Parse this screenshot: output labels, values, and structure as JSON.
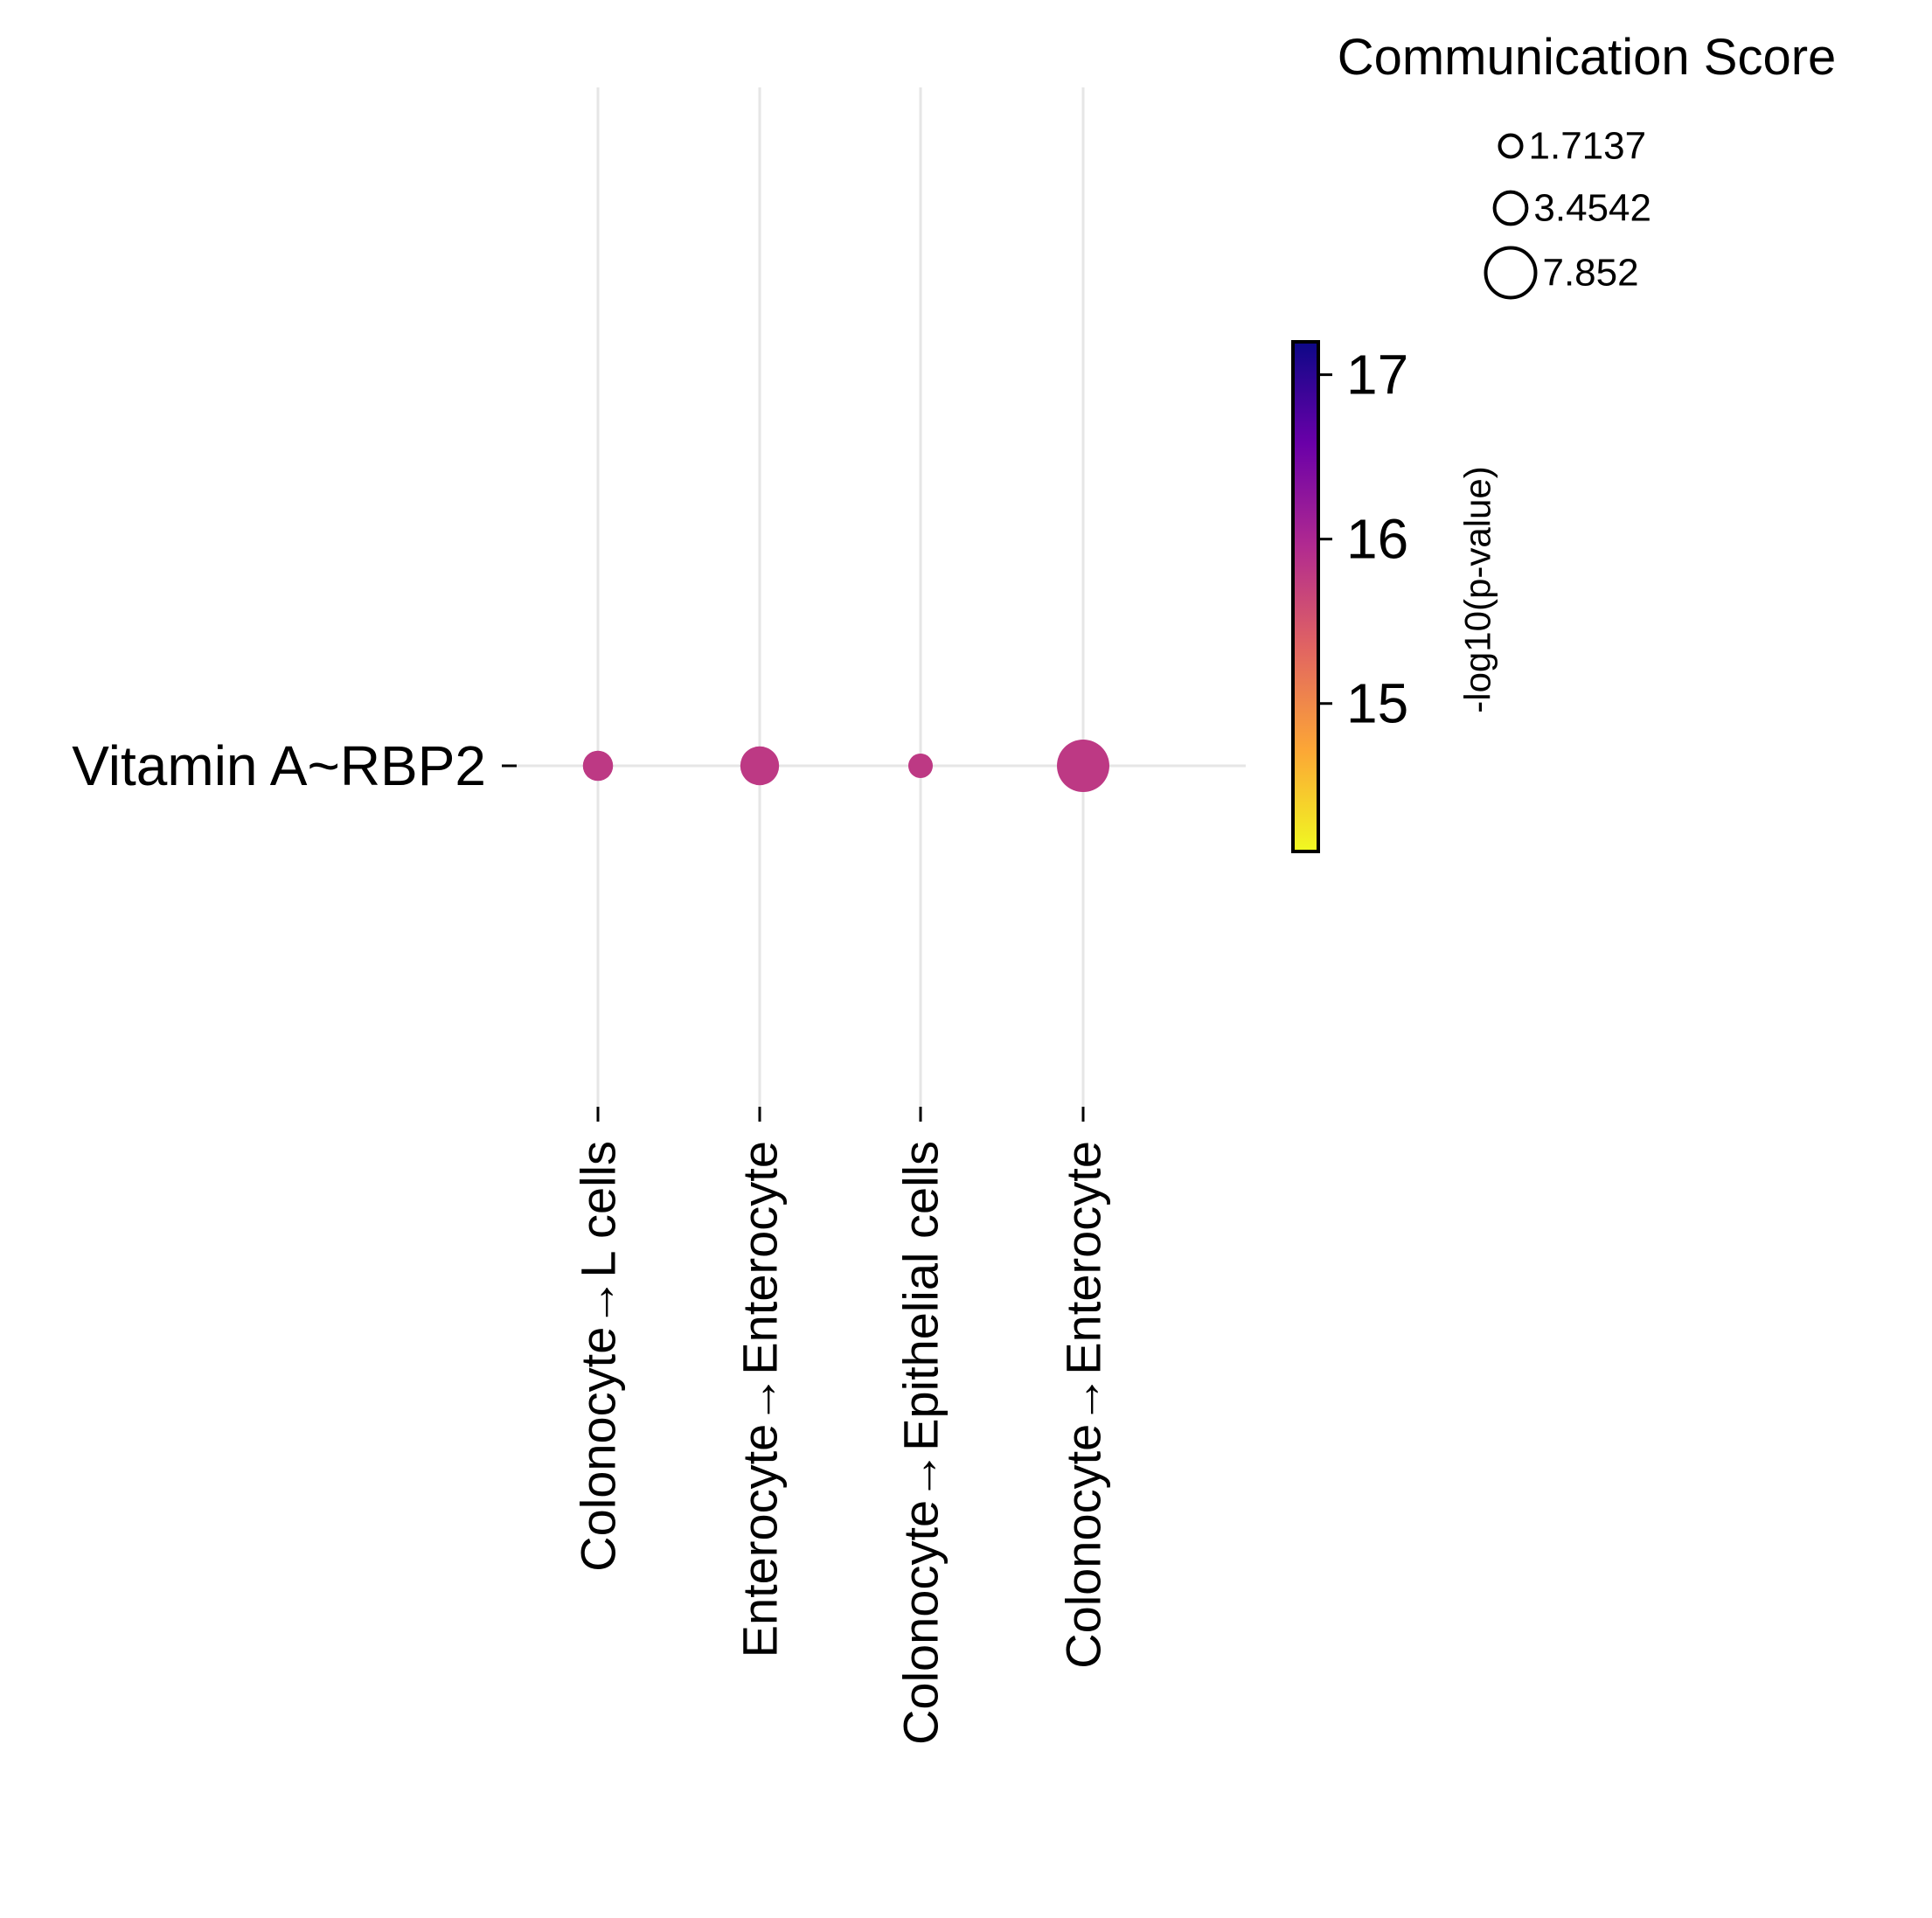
{
  "chart_data": {
    "type": "scatter",
    "title": "",
    "xlabel": "",
    "ylabel": "",
    "categories": [
      "Colonocyte→L cells",
      "Enterocyte→Enterocyte",
      "Colonocyte→Epithelial cells",
      "Colonocyte→Enterocyte"
    ],
    "y_categories": [
      "Vitamin A~RBP2"
    ],
    "points": [
      {
        "x": "Colonocyte→L cells",
        "y": "Vitamin A~RBP2",
        "score": 2.6,
        "neg_log10_p": 15.8
      },
      {
        "x": "Enterocyte→Enterocyte",
        "y": "Vitamin A~RBP2",
        "score": 4.3,
        "neg_log10_p": 15.8
      },
      {
        "x": "Colonocyte→Epithelial cells",
        "y": "Vitamin A~RBP2",
        "score": 1.7137,
        "neg_log10_p": 15.8
      },
      {
        "x": "Colonocyte→Enterocyte",
        "y": "Vitamin A~RBP2",
        "score": 7.852,
        "neg_log10_p": 15.8
      }
    ],
    "size_legend": {
      "title": "Communication Score",
      "entries": [
        {
          "label": "1.7137",
          "value": 1.7137
        },
        {
          "label": "3.4542",
          "value": 3.4542
        },
        {
          "label": "7.852",
          "value": 7.852
        }
      ]
    },
    "colorbar": {
      "label": "-log10(p-value)",
      "range": [
        14.1,
        17.2
      ],
      "ticks": [
        {
          "label": "15",
          "value": 15
        },
        {
          "label": "16",
          "value": 16
        },
        {
          "label": "17",
          "value": 17
        }
      ],
      "colormap": "plasma_r",
      "stops": [
        "#f0f921",
        "#fca636",
        "#e16462",
        "#b12a90",
        "#6a00a8",
        "#0d0887"
      ]
    },
    "colors": {
      "grid": "#e6e6e6",
      "axis_text": "#000000",
      "point": "#cc4778"
    },
    "grid": true,
    "legend_position": "right"
  }
}
